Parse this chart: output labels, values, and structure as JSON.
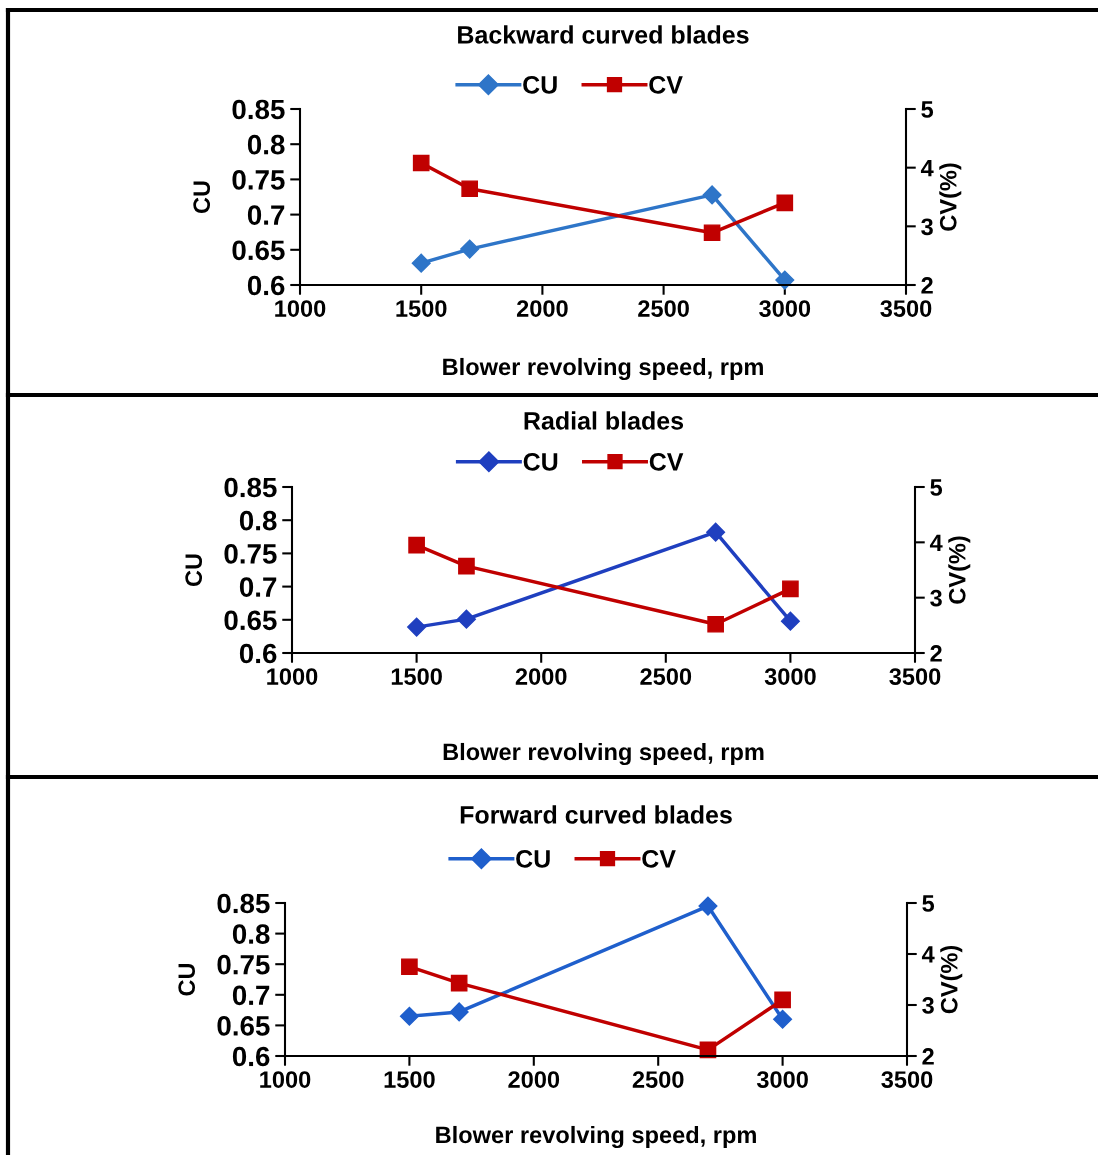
{
  "chart_data": [
    {
      "type": "line",
      "title": "Backward curved blades",
      "xlabel": "Blower revolving speed, rpm",
      "ylabel": "CU",
      "y2label": "CV(%)",
      "x": [
        1500,
        1700,
        2700,
        3000
      ],
      "xlim": [
        1000,
        3500
      ],
      "xticks": [
        1000,
        1500,
        2000,
        2500,
        3000,
        3500
      ],
      "ylim": [
        0.6,
        0.85
      ],
      "yticks": [
        0.6,
        0.65,
        0.7,
        0.75,
        0.8,
        0.85
      ],
      "y2lim": [
        2,
        5
      ],
      "y2ticks": [
        2,
        3,
        4,
        5
      ],
      "grid": false,
      "legend": "top",
      "line_style": "solid",
      "series": [
        {
          "name": "CU",
          "color": "#2e75c8",
          "marker": "diamond",
          "values": [
            0.631,
            0.651,
            0.728,
            0.607
          ]
        },
        {
          "name": "CV",
          "color": "#c00000",
          "marker": "square",
          "axis": "y2",
          "values": [
            4.08,
            3.64,
            2.89,
            3.4
          ]
        }
      ]
    },
    {
      "type": "line",
      "title": "Radial blades",
      "xlabel": "Blower revolving speed, rpm",
      "ylabel": "CU",
      "y2label": "CV(%)",
      "x": [
        1500,
        1700,
        2700,
        3000
      ],
      "xlim": [
        1000,
        3500
      ],
      "xticks": [
        1000,
        1500,
        2000,
        2500,
        3000,
        3500
      ],
      "ylim": [
        0.6,
        0.85
      ],
      "yticks": [
        0.6,
        0.65,
        0.7,
        0.75,
        0.8,
        0.85
      ],
      "y2lim": [
        2,
        5
      ],
      "y2ticks": [
        2,
        3,
        4,
        5
      ],
      "grid": false,
      "legend": "top",
      "line_style": "solid",
      "series": [
        {
          "name": "CU",
          "color": "#1f3fbf",
          "marker": "diamond",
          "values": [
            0.639,
            0.651,
            0.782,
            0.648
          ]
        },
        {
          "name": "CV",
          "color": "#c00000",
          "marker": "square",
          "axis": "y2",
          "values": [
            3.95,
            3.57,
            2.52,
            3.16
          ]
        }
      ]
    },
    {
      "type": "line",
      "title": "Forward curved blades",
      "xlabel": "Blower revolving speed, rpm",
      "ylabel": "CU",
      "y2label": "CV(%)",
      "x": [
        1500,
        1700,
        2700,
        3000
      ],
      "xlim": [
        1000,
        3500
      ],
      "xticks": [
        1000,
        1500,
        2000,
        2500,
        3000,
        3500
      ],
      "ylim": [
        0.6,
        0.85
      ],
      "yticks": [
        0.6,
        0.65,
        0.7,
        0.75,
        0.8,
        0.85
      ],
      "y2lim": [
        2,
        5
      ],
      "y2ticks": [
        2,
        3,
        4,
        5
      ],
      "grid": false,
      "legend": "top",
      "line_style": "solid",
      "series": [
        {
          "name": "CU",
          "color": "#1f5fcc",
          "marker": "diamond",
          "values": [
            0.665,
            0.672,
            0.845,
            0.66
          ]
        },
        {
          "name": "CV",
          "color": "#c00000",
          "marker": "square",
          "axis": "y2",
          "values": [
            3.75,
            3.43,
            2.12,
            3.1
          ]
        }
      ]
    }
  ]
}
